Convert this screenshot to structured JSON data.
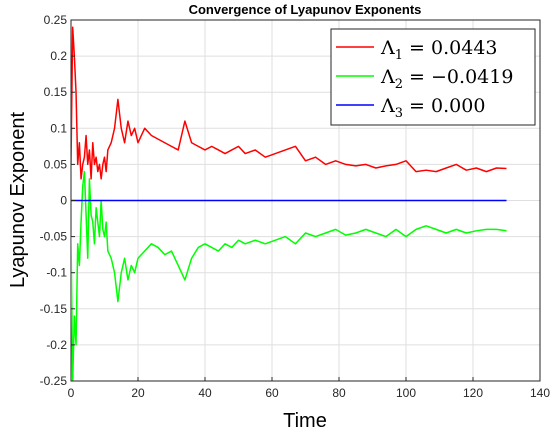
{
  "chart_data": {
    "type": "line",
    "title": "Convergence of Lyapunov Exponents",
    "xlabel": "Time",
    "ylabel": "Lyapunov Exponent",
    "xlim": [
      0,
      140
    ],
    "ylim": [
      -0.25,
      0.25
    ],
    "grid": true,
    "legend_position": "top-right",
    "x_ticks": [
      "0",
      "20",
      "40",
      "60",
      "80",
      "100",
      "120",
      "140"
    ],
    "y_ticks": [
      "-0.25",
      "-0.2",
      "-0.15",
      "-0.1",
      "-0.05",
      "0",
      "0.05",
      "0.1",
      "0.15",
      "0.2",
      "0.25"
    ],
    "series": [
      {
        "name": "Λ1 = 0.0443",
        "color": "#ff0000",
        "x": [
          0,
          0.5,
          1,
          1.5,
          2,
          2.5,
          3,
          3.5,
          4,
          4.5,
          5,
          5.5,
          6,
          6.5,
          7,
          7.5,
          8,
          8.5,
          9,
          9.5,
          10,
          10.5,
          11,
          12,
          13,
          14,
          15,
          16,
          17,
          18,
          19,
          20,
          22,
          24,
          26,
          28,
          30,
          32,
          34,
          36,
          38,
          40,
          42,
          44,
          46,
          48,
          50,
          52,
          55,
          58,
          61,
          64,
          67,
          70,
          73,
          76,
          79,
          82,
          85,
          88,
          91,
          94,
          97,
          100,
          103,
          106,
          109,
          112,
          115,
          118,
          121,
          124,
          127,
          130
        ],
        "values": [
          0.05,
          0.24,
          0.2,
          0.15,
          0.05,
          0.08,
          0.03,
          0.05,
          0.06,
          0.09,
          0.05,
          0.07,
          0.03,
          0.08,
          0.05,
          0.06,
          0.04,
          0.05,
          0.03,
          0.05,
          0.06,
          0.04,
          0.07,
          0.08,
          0.1,
          0.14,
          0.1,
          0.08,
          0.11,
          0.09,
          0.1,
          0.08,
          0.1,
          0.09,
          0.085,
          0.08,
          0.075,
          0.07,
          0.11,
          0.08,
          0.075,
          0.07,
          0.075,
          0.07,
          0.065,
          0.07,
          0.075,
          0.065,
          0.07,
          0.06,
          0.065,
          0.07,
          0.075,
          0.055,
          0.06,
          0.05,
          0.055,
          0.05,
          0.048,
          0.05,
          0.045,
          0.048,
          0.05,
          0.055,
          0.04,
          0.042,
          0.04,
          0.045,
          0.05,
          0.042,
          0.045,
          0.04,
          0.045,
          0.0443
        ]
      },
      {
        "name": "Λ2 = −0.0419",
        "color": "#00ff00",
        "x": [
          0,
          0.5,
          1,
          1.5,
          2,
          2.5,
          3,
          3.5,
          4,
          4.5,
          5,
          5.5,
          6,
          6.5,
          7,
          7.5,
          8,
          8.5,
          9,
          9.5,
          10,
          10.5,
          11,
          12,
          13,
          14,
          15,
          16,
          17,
          18,
          19,
          20,
          22,
          24,
          26,
          28,
          30,
          32,
          34,
          36,
          38,
          40,
          42,
          44,
          46,
          48,
          50,
          52,
          55,
          58,
          61,
          64,
          67,
          70,
          73,
          76,
          79,
          82,
          85,
          88,
          91,
          94,
          97,
          100,
          103,
          106,
          109,
          112,
          115,
          118,
          121,
          124,
          127,
          130
        ],
        "values": [
          -0.05,
          -0.25,
          -0.16,
          -0.2,
          -0.06,
          -0.09,
          -0.03,
          0.02,
          0.04,
          -0.02,
          -0.08,
          0.03,
          -0.02,
          -0.03,
          -0.06,
          -0.01,
          -0.03,
          -0.05,
          0.0,
          -0.04,
          -0.05,
          -0.03,
          -0.07,
          -0.08,
          -0.1,
          -0.14,
          -0.1,
          -0.08,
          -0.11,
          -0.09,
          -0.1,
          -0.08,
          -0.07,
          -0.06,
          -0.065,
          -0.075,
          -0.07,
          -0.09,
          -0.11,
          -0.08,
          -0.065,
          -0.06,
          -0.065,
          -0.07,
          -0.06,
          -0.065,
          -0.055,
          -0.06,
          -0.055,
          -0.06,
          -0.055,
          -0.05,
          -0.06,
          -0.045,
          -0.05,
          -0.045,
          -0.04,
          -0.048,
          -0.045,
          -0.04,
          -0.045,
          -0.05,
          -0.04,
          -0.05,
          -0.04,
          -0.035,
          -0.04,
          -0.045,
          -0.04,
          -0.045,
          -0.042,
          -0.04,
          -0.04,
          -0.0419
        ]
      },
      {
        "name": "Λ3 = 0.000",
        "color": "#0000ff",
        "x": [
          0,
          130
        ],
        "values": [
          0,
          0
        ]
      }
    ],
    "legend": [
      {
        "base": "Λ",
        "sub": "1",
        "rest": " = 0.0443",
        "color": "#ff0000"
      },
      {
        "base": "Λ",
        "sub": "2",
        "rest": " = −0.0419",
        "color": "#00ff00"
      },
      {
        "base": "Λ",
        "sub": "3",
        "rest": " = 0.000",
        "color": "#0000ff"
      }
    ]
  }
}
